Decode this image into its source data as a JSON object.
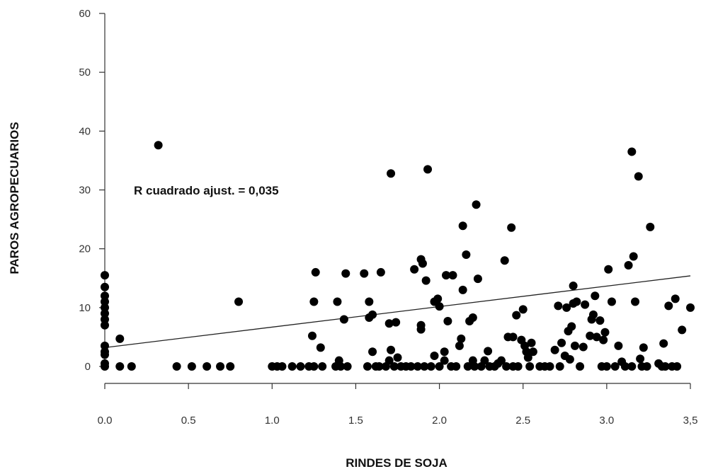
{
  "chart_data": {
    "type": "scatter",
    "xlabel": "RINDES DE SOJA",
    "ylabel": "PAROS AGROPECUARIOS",
    "xlim": [
      0,
      3.5
    ],
    "ylim": [
      0,
      60
    ],
    "x_ticks": [
      0,
      0.5,
      1.0,
      1.5,
      2.0,
      2.5,
      3.0,
      3.5
    ],
    "x_tick_labels": [
      "0.0",
      "0.5",
      "1.0",
      "1.5",
      "2.0",
      "2.5",
      "3.0",
      "3,5"
    ],
    "y_ticks": [
      0,
      10,
      20,
      30,
      40,
      50,
      60
    ],
    "y_tick_labels": [
      "0",
      "10",
      "20",
      "30",
      "40",
      "50",
      "60"
    ],
    "annotation": "R cuadrado ajust. = 0,035",
    "grid": false,
    "colors": {
      "points": "#000000",
      "fit_line": "#222222",
      "axis": "#333333"
    },
    "regression_line": {
      "x": [
        0,
        3.5
      ],
      "y": [
        3.2,
        15.4
      ]
    },
    "points": [
      [
        0.0,
        15.5
      ],
      [
        0.0,
        13.5
      ],
      [
        0.0,
        12.0
      ],
      [
        0.0,
        11.0
      ],
      [
        0.0,
        10.0
      ],
      [
        0.0,
        9.0
      ],
      [
        0.0,
        8.0
      ],
      [
        0.0,
        7.0
      ],
      [
        0.0,
        3.5
      ],
      [
        0.0,
        2.5
      ],
      [
        0.0,
        2.0
      ],
      [
        0.0,
        0.5
      ],
      [
        0.0,
        0.0
      ],
      [
        0.09,
        4.7
      ],
      [
        0.09,
        0.0
      ],
      [
        0.16,
        0.0
      ],
      [
        0.32,
        37.6
      ],
      [
        0.43,
        0.0
      ],
      [
        0.52,
        0.0
      ],
      [
        0.61,
        0.0
      ],
      [
        0.69,
        0.0
      ],
      [
        0.75,
        0.0
      ],
      [
        0.8,
        11.0
      ],
      [
        1.0,
        0.0
      ],
      [
        1.03,
        0.0
      ],
      [
        1.06,
        0.0
      ],
      [
        1.12,
        0.0
      ],
      [
        1.17,
        0.0
      ],
      [
        1.22,
        0.0
      ],
      [
        1.24,
        5.2
      ],
      [
        1.25,
        11.0
      ],
      [
        1.25,
        0.0
      ],
      [
        1.26,
        16.0
      ],
      [
        1.29,
        3.2
      ],
      [
        1.3,
        0.0
      ],
      [
        1.38,
        0.0
      ],
      [
        1.39,
        11.0
      ],
      [
        1.4,
        1.0
      ],
      [
        1.41,
        0.0
      ],
      [
        1.43,
        8.0
      ],
      [
        1.44,
        15.8
      ],
      [
        1.45,
        0.0
      ],
      [
        1.55,
        15.8
      ],
      [
        1.57,
        0.0
      ],
      [
        1.58,
        11.0
      ],
      [
        1.58,
        8.3
      ],
      [
        1.6,
        8.8
      ],
      [
        1.6,
        2.5
      ],
      [
        1.62,
        0.0
      ],
      [
        1.64,
        0.0
      ],
      [
        1.65,
        16.0
      ],
      [
        1.68,
        0.0
      ],
      [
        1.7,
        1.0
      ],
      [
        1.7,
        7.3
      ],
      [
        1.71,
        2.8
      ],
      [
        1.71,
        32.8
      ],
      [
        1.73,
        0.0
      ],
      [
        1.74,
        7.5
      ],
      [
        1.75,
        1.5
      ],
      [
        1.77,
        0.0
      ],
      [
        1.8,
        0.0
      ],
      [
        1.83,
        0.0
      ],
      [
        1.85,
        16.5
      ],
      [
        1.87,
        0.0
      ],
      [
        1.89,
        18.2
      ],
      [
        1.9,
        17.5
      ],
      [
        1.89,
        7.0
      ],
      [
        1.89,
        6.3
      ],
      [
        1.91,
        0.0
      ],
      [
        1.92,
        14.6
      ],
      [
        1.93,
        33.5
      ],
      [
        1.95,
        0.0
      ],
      [
        1.97,
        1.8
      ],
      [
        1.97,
        11.0
      ],
      [
        1.99,
        11.5
      ],
      [
        2.0,
        10.2
      ],
      [
        2.0,
        0.0
      ],
      [
        2.03,
        1.0
      ],
      [
        2.03,
        2.5
      ],
      [
        2.04,
        15.5
      ],
      [
        2.05,
        7.7
      ],
      [
        2.07,
        0.0
      ],
      [
        2.08,
        15.5
      ],
      [
        2.1,
        0.0
      ],
      [
        2.12,
        3.5
      ],
      [
        2.13,
        4.7
      ],
      [
        2.14,
        13.0
      ],
      [
        2.14,
        23.9
      ],
      [
        2.16,
        19.0
      ],
      [
        2.17,
        0.0
      ],
      [
        2.18,
        7.7
      ],
      [
        2.2,
        8.3
      ],
      [
        2.2,
        1.0
      ],
      [
        2.21,
        0.0
      ],
      [
        2.22,
        27.5
      ],
      [
        2.23,
        14.9
      ],
      [
        2.25,
        0.0
      ],
      [
        2.27,
        1.0
      ],
      [
        2.29,
        2.6
      ],
      [
        2.3,
        0.0
      ],
      [
        2.33,
        0.0
      ],
      [
        2.35,
        0.5
      ],
      [
        2.37,
        1.0
      ],
      [
        2.39,
        18.0
      ],
      [
        2.4,
        0.0
      ],
      [
        2.41,
        5.0
      ],
      [
        2.43,
        23.6
      ],
      [
        2.44,
        5.0
      ],
      [
        2.44,
        0.0
      ],
      [
        2.46,
        8.7
      ],
      [
        2.47,
        0.0
      ],
      [
        2.49,
        4.5
      ],
      [
        2.5,
        9.7
      ],
      [
        2.51,
        3.5
      ],
      [
        2.52,
        2.5
      ],
      [
        2.53,
        1.5
      ],
      [
        2.54,
        0.0
      ],
      [
        2.55,
        4.0
      ],
      [
        2.56,
        2.5
      ],
      [
        2.6,
        0.0
      ],
      [
        2.63,
        0.0
      ],
      [
        2.66,
        0.0
      ],
      [
        2.69,
        2.8
      ],
      [
        2.71,
        10.3
      ],
      [
        2.72,
        0.0
      ],
      [
        2.73,
        4.0
      ],
      [
        2.75,
        1.8
      ],
      [
        2.76,
        10.0
      ],
      [
        2.77,
        6.0
      ],
      [
        2.78,
        1.2
      ],
      [
        2.79,
        6.8
      ],
      [
        2.8,
        10.7
      ],
      [
        2.8,
        13.7
      ],
      [
        2.81,
        3.5
      ],
      [
        2.82,
        11.0
      ],
      [
        2.84,
        0.0
      ],
      [
        2.86,
        3.3
      ],
      [
        2.87,
        10.5
      ],
      [
        2.9,
        5.2
      ],
      [
        2.91,
        8.0
      ],
      [
        2.92,
        8.8
      ],
      [
        2.93,
        12.0
      ],
      [
        2.94,
        5.0
      ],
      [
        2.96,
        7.8
      ],
      [
        2.97,
        0.0
      ],
      [
        2.98,
        4.5
      ],
      [
        2.99,
        5.8
      ],
      [
        3.0,
        0.0
      ],
      [
        3.01,
        16.5
      ],
      [
        3.03,
        11.0
      ],
      [
        3.05,
        0.0
      ],
      [
        3.07,
        3.5
      ],
      [
        3.09,
        0.8
      ],
      [
        3.11,
        0.0
      ],
      [
        3.13,
        17.2
      ],
      [
        3.15,
        0.0
      ],
      [
        3.15,
        36.5
      ],
      [
        3.16,
        18.7
      ],
      [
        3.17,
        11.0
      ],
      [
        3.19,
        32.3
      ],
      [
        3.2,
        1.3
      ],
      [
        3.21,
        0.0
      ],
      [
        3.22,
        3.2
      ],
      [
        3.24,
        0.0
      ],
      [
        3.26,
        23.7
      ],
      [
        3.31,
        0.5
      ],
      [
        3.33,
        0.0
      ],
      [
        3.34,
        3.9
      ],
      [
        3.35,
        0.0
      ],
      [
        3.37,
        10.3
      ],
      [
        3.39,
        0.0
      ],
      [
        3.41,
        11.5
      ],
      [
        3.42,
        0.0
      ],
      [
        3.45,
        6.2
      ],
      [
        3.5,
        10.0
      ]
    ]
  }
}
